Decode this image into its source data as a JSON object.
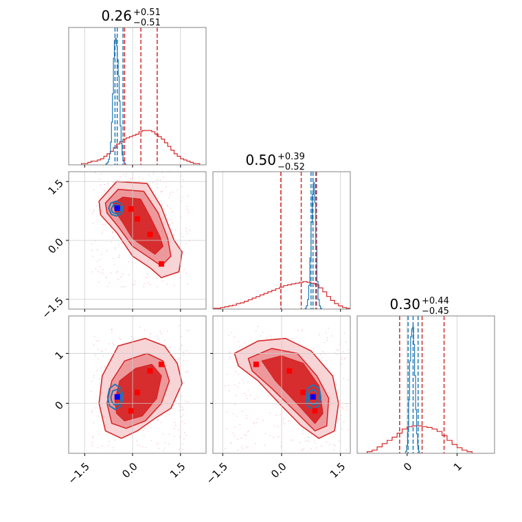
{
  "chart_data": {
    "type": "corner",
    "colors": {
      "posterior_a": "#d62728",
      "posterior_b": "#1f77b4",
      "fill_dark": "#d62728",
      "fill_mid": "#eb8e92",
      "fill_light": "#f6cccf",
      "marker_red": "#ff0000",
      "marker_blue": "#0000ff",
      "grid": "#cccccc"
    },
    "parameters": [
      {
        "title": {
          "median": "0.26",
          "plus": "+0.51",
          "minus": "−0.51"
        },
        "range": [
          -2.0,
          2.3
        ],
        "ticks": [
          -1.5,
          0.0,
          1.5
        ],
        "tick_labels": [
          "−1.5",
          "0.0",
          "1.5"
        ],
        "quantiles_a": [
          -0.25,
          0.26,
          0.77
        ],
        "quantiles_b": [
          -0.55,
          -0.48,
          -0.3
        ],
        "hist_a": {
          "start": -1.6,
          "step": 0.1,
          "counts": [
            1,
            1,
            2,
            3,
            3,
            4,
            5,
            7,
            9,
            11,
            14,
            17,
            19,
            21,
            22,
            23,
            24,
            25,
            27,
            28,
            28,
            28,
            27,
            25,
            23,
            21,
            18,
            15,
            12,
            9,
            7,
            5,
            4,
            3,
            2,
            1,
            1
          ]
        },
        "hist_b": {
          "start": -0.84,
          "step": 0.03,
          "counts": [
            1,
            2,
            4,
            8,
            16,
            32,
            60,
            100,
            150,
            175,
            178,
            168,
            148,
            125,
            90,
            55,
            30,
            14,
            6,
            3,
            1
          ]
        }
      },
      {
        "title": {
          "median": "0.50",
          "plus": "+0.39",
          "minus": "−0.52"
        },
        "range": [
          -1.75,
          1.75
        ],
        "ticks": [
          -1.5,
          0.0,
          1.5
        ],
        "tick_labels": [
          "−1.5",
          "0.0",
          "1.5"
        ],
        "quantiles_a": [
          -0.02,
          0.5,
          0.89
        ],
        "quantiles_b": [
          0.75,
          0.8,
          0.87
        ],
        "hist_a": {
          "start": -1.75,
          "step": 0.1,
          "counts": [
            1,
            1,
            2,
            3,
            4,
            5,
            7,
            8,
            10,
            12,
            14,
            16,
            18,
            20,
            22,
            24,
            26,
            28,
            30,
            31,
            32,
            33,
            34,
            35,
            34,
            33,
            31,
            27,
            22,
            16,
            11,
            7,
            4,
            2,
            1
          ]
        },
        "hist_b": {
          "start": 0.6,
          "step": 0.03,
          "counts": [
            1,
            4,
            12,
            30,
            65,
            110,
            145,
            160,
            135,
            80,
            35,
            12,
            4,
            1
          ]
        }
      },
      {
        "title": {
          "median": "0.30",
          "plus": "+0.44",
          "minus": "−0.45"
        },
        "range": [
          -1.0,
          1.75
        ],
        "ticks": [
          0.0,
          1.0
        ],
        "tick_labels": [
          "0",
          "1"
        ],
        "quantiles_a": [
          -0.15,
          0.3,
          0.74
        ],
        "quantiles_b": [
          0.02,
          0.12,
          0.22
        ],
        "hist_a": {
          "start": -0.8,
          "step": 0.1,
          "counts": [
            2,
            4,
            8,
            12,
            16,
            20,
            25,
            30,
            33,
            34,
            34,
            33,
            32,
            30,
            27,
            22,
            16,
            11,
            7,
            4,
            2
          ]
        },
        "hist_b": {
          "start": -0.03,
          "step": 0.02,
          "counts": [
            2,
            8,
            22,
            55,
            95,
            120,
            128,
            130,
            112,
            80,
            45,
            20,
            8,
            2
          ]
        }
      }
    ],
    "pairs": [
      {
        "x_param": 0,
        "y_param": 1,
        "ylim": [
          -1.75,
          1.75
        ],
        "yticks": [
          -1.5,
          0.0,
          1.5
        ],
        "ytick_labels": [
          "−1.5",
          "0.0",
          "1.5"
        ],
        "contours_a": [
          [
            [
              -1.05,
              1.0
            ],
            [
              -0.5,
              1.5
            ],
            [
              0.45,
              1.45
            ],
            [
              0.9,
              0.85
            ],
            [
              1.3,
              0.0
            ],
            [
              1.55,
              -0.3
            ],
            [
              1.45,
              -0.8
            ],
            [
              0.9,
              -0.95
            ],
            [
              0.55,
              -0.7
            ],
            [
              0.0,
              -0.4
            ],
            [
              -0.5,
              0.2
            ],
            [
              -1.0,
              0.65
            ]
          ],
          [
            [
              -0.85,
              0.95
            ],
            [
              -0.45,
              1.3
            ],
            [
              0.35,
              1.25
            ],
            [
              0.8,
              0.7
            ],
            [
              1.1,
              0.05
            ],
            [
              1.2,
              -0.4
            ],
            [
              0.9,
              -0.65
            ],
            [
              0.45,
              -0.4
            ],
            [
              0.0,
              -0.15
            ],
            [
              -0.45,
              0.35
            ],
            [
              -0.8,
              0.7
            ]
          ],
          [
            [
              -0.6,
              0.95
            ],
            [
              -0.3,
              1.1
            ],
            [
              0.25,
              1.05
            ],
            [
              0.55,
              0.6
            ],
            [
              0.85,
              0.1
            ],
            [
              0.95,
              -0.15
            ],
            [
              0.7,
              -0.35
            ],
            [
              0.35,
              -0.15
            ],
            [
              0.0,
              0.05
            ],
            [
              -0.3,
              0.45
            ],
            [
              -0.55,
              0.75
            ]
          ]
        ],
        "contours_b": [
          [
            [
              -0.75,
              0.82
            ],
            [
              -0.68,
              0.95
            ],
            [
              -0.52,
              1.0
            ],
            [
              -0.35,
              0.93
            ],
            [
              -0.3,
              0.8
            ],
            [
              -0.35,
              0.68
            ],
            [
              -0.5,
              0.62
            ],
            [
              -0.66,
              0.66
            ]
          ],
          [
            [
              -0.67,
              0.8
            ],
            [
              -0.6,
              0.9
            ],
            [
              -0.5,
              0.92
            ],
            [
              -0.39,
              0.86
            ],
            [
              -0.37,
              0.78
            ],
            [
              -0.42,
              0.7
            ],
            [
              -0.53,
              0.68
            ],
            [
              -0.63,
              0.72
            ]
          ]
        ],
        "markers_red": [
          [
            -0.05,
            0.8
          ],
          [
            0.15,
            0.55
          ],
          [
            0.55,
            0.15
          ],
          [
            0.9,
            -0.6
          ]
        ],
        "markers_blue": [
          [
            -0.48,
            0.82
          ]
        ]
      },
      {
        "x_param": 0,
        "y_param": 2,
        "ylim": [
          -1.0,
          1.75
        ],
        "yticks": [
          0.0,
          1.0
        ],
        "ytick_labels": [
          "0",
          "1"
        ],
        "contours_a": [
          [
            [
              -1.05,
              0.0
            ],
            [
              -0.95,
              0.55
            ],
            [
              -0.45,
              1.15
            ],
            [
              0.4,
              1.3
            ],
            [
              1.0,
              1.15
            ],
            [
              1.4,
              0.8
            ],
            [
              1.55,
              0.4
            ],
            [
              1.2,
              -0.1
            ],
            [
              0.7,
              -0.3
            ],
            [
              0.15,
              -0.55
            ],
            [
              -0.35,
              -0.7
            ],
            [
              -0.85,
              -0.55
            ]
          ],
          [
            [
              -0.8,
              0.0
            ],
            [
              -0.65,
              0.45
            ],
            [
              -0.25,
              0.85
            ],
            [
              0.45,
              1.0
            ],
            [
              0.95,
              0.85
            ],
            [
              1.15,
              0.45
            ],
            [
              0.9,
              0.0
            ],
            [
              0.4,
              -0.35
            ],
            [
              -0.2,
              -0.5
            ],
            [
              -0.65,
              -0.4
            ]
          ],
          [
            [
              -0.55,
              0.05
            ],
            [
              -0.4,
              0.45
            ],
            [
              0.1,
              0.7
            ],
            [
              0.6,
              0.78
            ],
            [
              0.9,
              0.55
            ],
            [
              0.75,
              0.1
            ],
            [
              0.3,
              -0.25
            ],
            [
              -0.25,
              -0.35
            ],
            [
              -0.5,
              -0.2
            ]
          ]
        ],
        "contours_b": [
          [
            [
              -0.78,
              0.12
            ],
            [
              -0.72,
              0.3
            ],
            [
              -0.55,
              0.38
            ],
            [
              -0.36,
              0.3
            ],
            [
              -0.3,
              0.12
            ],
            [
              -0.36,
              -0.05
            ],
            [
              -0.55,
              -0.12
            ],
            [
              -0.72,
              -0.05
            ]
          ],
          [
            [
              -0.68,
              0.12
            ],
            [
              -0.62,
              0.25
            ],
            [
              -0.48,
              0.28
            ],
            [
              -0.38,
              0.2
            ],
            [
              -0.36,
              0.08
            ],
            [
              -0.43,
              -0.02
            ],
            [
              -0.57,
              -0.03
            ],
            [
              -0.65,
              0.03
            ]
          ]
        ],
        "markers_red": [
          [
            -0.05,
            -0.15
          ],
          [
            0.15,
            0.22
          ],
          [
            0.55,
            0.65
          ],
          [
            0.9,
            0.78
          ]
        ],
        "markers_blue": [
          [
            -0.48,
            0.13
          ]
        ]
      },
      {
        "x_param": 1,
        "y_param": 2,
        "ylim": [
          -1.0,
          1.75
        ],
        "yticks": [
          0.0,
          1.0
        ],
        "ytick_labels": [
          "0",
          "1"
        ],
        "contours_a": [
          [
            [
              -1.2,
              1.0
            ],
            [
              -0.6,
              1.25
            ],
            [
              0.1,
              1.3
            ],
            [
              0.75,
              1.05
            ],
            [
              1.3,
              0.55
            ],
            [
              1.45,
              0.0
            ],
            [
              1.35,
              -0.55
            ],
            [
              0.95,
              -0.7
            ],
            [
              0.5,
              -0.45
            ],
            [
              0.0,
              -0.05
            ],
            [
              -0.6,
              0.45
            ],
            [
              -1.1,
              0.75
            ]
          ],
          [
            [
              -0.85,
              0.9
            ],
            [
              -0.25,
              1.1
            ],
            [
              0.4,
              1.0
            ],
            [
              0.9,
              0.55
            ],
            [
              1.2,
              0.1
            ],
            [
              1.15,
              -0.45
            ],
            [
              0.85,
              -0.55
            ],
            [
              0.4,
              -0.2
            ],
            [
              -0.25,
              0.3
            ],
            [
              -0.75,
              0.65
            ]
          ],
          [
            [
              -0.5,
              0.85
            ],
            [
              0.0,
              0.95
            ],
            [
              0.55,
              0.8
            ],
            [
              0.95,
              0.35
            ],
            [
              1.05,
              -0.2
            ],
            [
              0.85,
              -0.4
            ],
            [
              0.45,
              -0.05
            ],
            [
              -0.15,
              0.45
            ]
          ]
        ],
        "contours_b": [
          [
            [
              0.62,
              0.12
            ],
            [
              0.66,
              0.3
            ],
            [
              0.8,
              0.37
            ],
            [
              0.96,
              0.3
            ],
            [
              1.0,
              0.12
            ],
            [
              0.95,
              -0.05
            ],
            [
              0.8,
              -0.12
            ],
            [
              0.66,
              -0.05
            ]
          ],
          [
            [
              0.68,
              0.12
            ],
            [
              0.71,
              0.24
            ],
            [
              0.81,
              0.28
            ],
            [
              0.91,
              0.22
            ],
            [
              0.93,
              0.1
            ],
            [
              0.89,
              0.0
            ],
            [
              0.79,
              -0.03
            ],
            [
              0.7,
              0.03
            ]
          ]
        ],
        "markers_red": [
          [
            -0.65,
            0.78
          ],
          [
            0.2,
            0.65
          ],
          [
            0.55,
            0.22
          ],
          [
            0.85,
            -0.15
          ]
        ],
        "markers_blue": [
          [
            0.8,
            0.13
          ]
        ]
      }
    ]
  }
}
